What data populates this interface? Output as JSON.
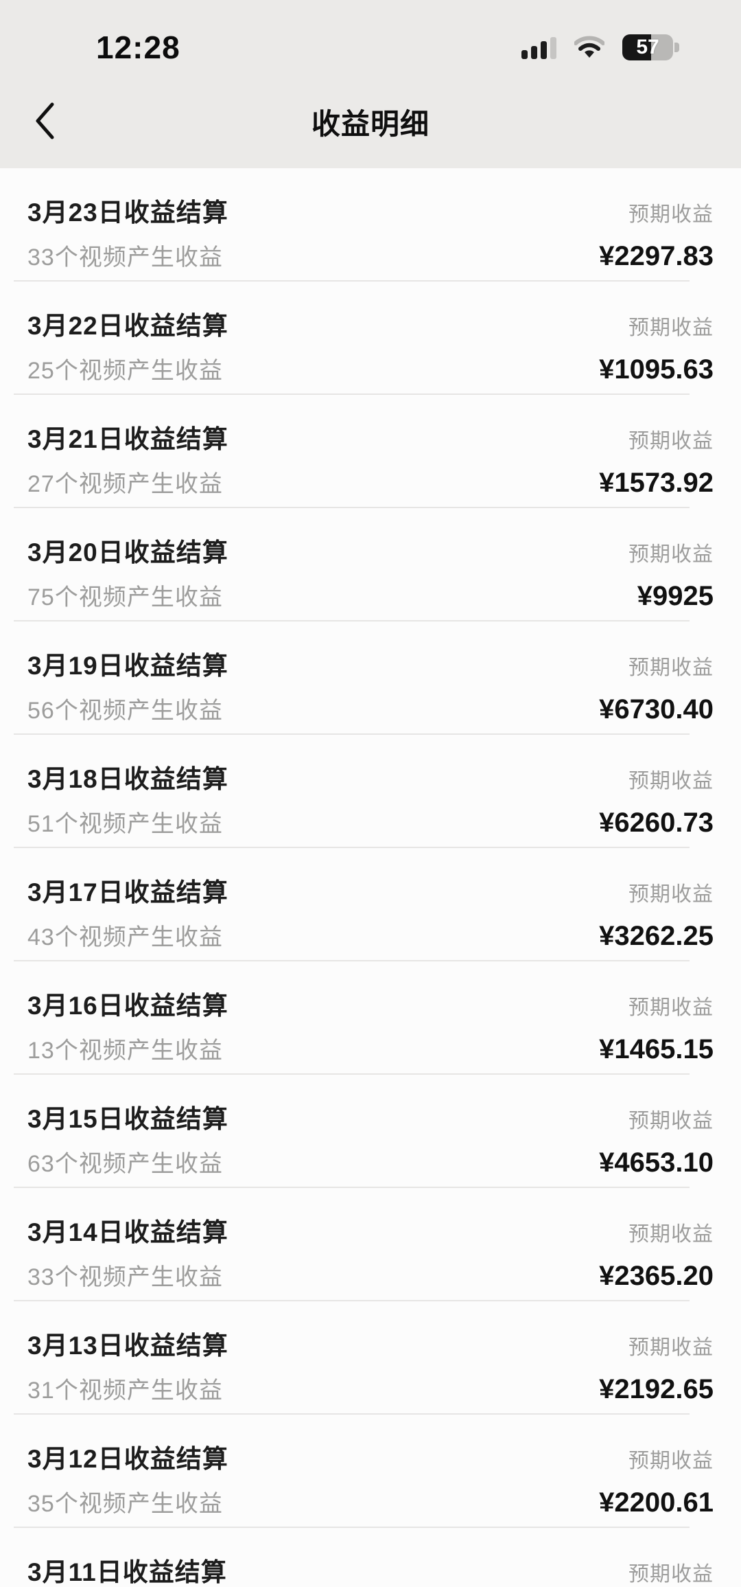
{
  "status_bar": {
    "time": "12:28",
    "battery_percent": "57",
    "icons": [
      "cellular-signal-icon",
      "wifi-icon",
      "battery-icon"
    ]
  },
  "header": {
    "title": "收益明细"
  },
  "list": {
    "expected_label": "预期收益",
    "rows": [
      {
        "title": "3月23日收益结算",
        "subtitle": "33个视频产生收益",
        "amount": "¥2297.83"
      },
      {
        "title": "3月22日收益结算",
        "subtitle": "25个视频产生收益",
        "amount": "¥1095.63"
      },
      {
        "title": "3月21日收益结算",
        "subtitle": "27个视频产生收益",
        "amount": "¥1573.92"
      },
      {
        "title": "3月20日收益结算",
        "subtitle": "75个视频产生收益",
        "amount": "¥9925"
      },
      {
        "title": "3月19日收益结算",
        "subtitle": "56个视频产生收益",
        "amount": "¥6730.40"
      },
      {
        "title": "3月18日收益结算",
        "subtitle": "51个视频产生收益",
        "amount": "¥6260.73"
      },
      {
        "title": "3月17日收益结算",
        "subtitle": "43个视频产生收益",
        "amount": "¥3262.25"
      },
      {
        "title": "3月16日收益结算",
        "subtitle": "13个视频产生收益",
        "amount": "¥1465.15"
      },
      {
        "title": "3月15日收益结算",
        "subtitle": "63个视频产生收益",
        "amount": "¥4653.10"
      },
      {
        "title": "3月14日收益结算",
        "subtitle": "33个视频产生收益",
        "amount": "¥2365.20"
      },
      {
        "title": "3月13日收益结算",
        "subtitle": "31个视频产生收益",
        "amount": "¥2192.65"
      },
      {
        "title": "3月12日收益结算",
        "subtitle": "35个视频产生收益",
        "amount": "¥2200.61"
      },
      {
        "title": "3月11日收益结算",
        "subtitle": "",
        "amount": ""
      }
    ]
  }
}
